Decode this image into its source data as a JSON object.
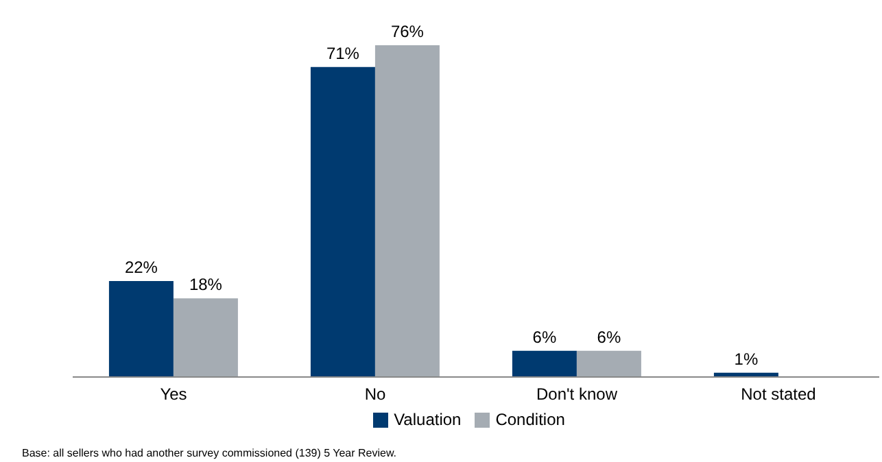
{
  "chart_data": {
    "type": "bar",
    "categories": [
      "Yes",
      "No",
      "Don't know",
      "Not stated"
    ],
    "series": [
      {
        "name": "Valuation",
        "color": "#003a70",
        "values": [
          22,
          71,
          6,
          1
        ],
        "value_labels": [
          "22%",
          "71%",
          "6%",
          "1%"
        ]
      },
      {
        "name": "Condition",
        "color": "#a5acb3",
        "values": [
          18,
          76,
          6,
          null
        ],
        "value_labels": [
          "18%",
          "76%",
          "6%",
          null
        ]
      }
    ],
    "legend": "bottom",
    "annotations": [
      "Base: all sellers who had another survey commissioned (139) 5 Year Review."
    ]
  }
}
